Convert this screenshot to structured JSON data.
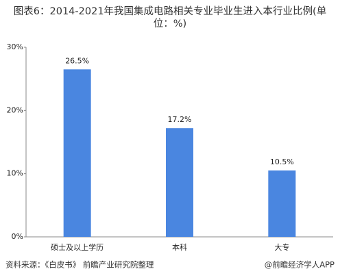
{
  "chart_data": {
    "type": "bar",
    "title": "图表6：2014-2021年我国集成电路相关专业毕业生进入本行业比例(单位：%)",
    "categories": [
      "硕士及以上学历",
      "本科",
      "大专"
    ],
    "values": [
      26.5,
      17.2,
      10.5
    ],
    "value_labels": [
      "26.5%",
      "17.2%",
      "10.5%"
    ],
    "color": "#4a86e0",
    "ylim": [
      0,
      30
    ],
    "yticks": [
      {
        "value": 0,
        "label": "0%"
      },
      {
        "value": 10,
        "label": "10%"
      },
      {
        "value": 20,
        "label": "20%"
      },
      {
        "value": 30,
        "label": "30%"
      }
    ],
    "grid": false,
    "source": "资料来源：《白皮书》 前瞻产业研究院整理",
    "watermark": "@前瞻经济学人APP"
  }
}
